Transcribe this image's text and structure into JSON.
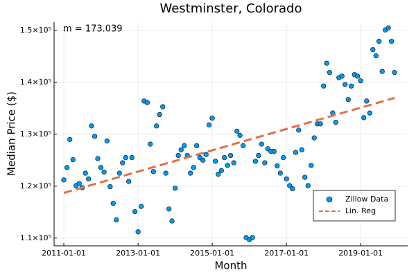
{
  "chart_data": {
    "type": "scatter",
    "title": "Westminster, Colorado",
    "x_label": "Month",
    "y_label": "Median Price ($)",
    "annotation": "m = 173.039",
    "xlim": [
      "2010-09-27",
      "2020-04-08"
    ],
    "ylim": [
      108500,
      151600
    ],
    "xticks": [
      "2011-01-01",
      "2013-01-01",
      "2015-01-01",
      "2017-01-01",
      "2019-01-01"
    ],
    "yticks": [
      {
        "value": 110000,
        "label": "1.1×10⁵"
      },
      {
        "value": 120000,
        "label": "1.2×10⁵"
      },
      {
        "value": 130000,
        "label": "1.3×10⁵"
      },
      {
        "value": 140000,
        "label": "1.4×10⁵"
      },
      {
        "value": 150000,
        "label": "1.5×10⁵"
      }
    ],
    "grid": true,
    "legend": "bottomright",
    "series": [
      {
        "name": "Zillow Data",
        "type": "scatter",
        "color": "#009af9",
        "x": [
          "2011-01-01",
          "2011-02-01",
          "2011-03-01",
          "2011-04-01",
          "2011-05-01",
          "2011-06-01",
          "2011-07-01",
          "2011-08-01",
          "2011-09-01",
          "2011-10-01",
          "2011-11-01",
          "2011-12-01",
          "2012-01-01",
          "2012-02-01",
          "2012-03-01",
          "2012-04-01",
          "2012-05-01",
          "2012-06-01",
          "2012-07-01",
          "2012-08-01",
          "2012-09-01",
          "2012-10-01",
          "2012-11-01",
          "2012-12-01",
          "2013-01-01",
          "2013-02-01",
          "2013-03-01",
          "2013-04-01",
          "2013-05-01",
          "2013-06-01",
          "2013-07-01",
          "2013-08-01",
          "2013-09-01",
          "2013-10-01",
          "2013-11-01",
          "2013-12-01",
          "2014-01-01",
          "2014-02-01",
          "2014-03-01",
          "2014-04-01",
          "2014-05-01",
          "2014-06-01",
          "2014-07-01",
          "2014-08-01",
          "2014-09-01",
          "2014-10-01",
          "2014-11-01",
          "2014-12-01",
          "2015-01-01",
          "2015-02-01",
          "2015-03-01",
          "2015-04-01",
          "2015-05-01",
          "2015-06-01",
          "2015-07-01",
          "2015-08-01",
          "2015-09-01",
          "2015-10-01",
          "2015-11-01",
          "2015-12-01",
          "2016-01-01",
          "2016-02-01",
          "2016-03-01",
          "2016-04-01",
          "2016-05-01",
          "2016-06-01",
          "2016-07-01",
          "2016-08-01",
          "2016-09-01",
          "2016-10-01",
          "2016-11-01",
          "2016-12-01",
          "2017-01-01",
          "2017-02-01",
          "2017-03-01",
          "2017-04-01",
          "2017-05-01",
          "2017-06-01",
          "2017-07-01",
          "2017-08-01",
          "2017-09-01",
          "2017-10-01",
          "2017-11-01",
          "2017-12-01",
          "2018-01-01",
          "2018-02-01",
          "2018-03-01",
          "2018-04-01",
          "2018-05-01",
          "2018-06-01",
          "2018-07-01",
          "2018-08-01",
          "2018-09-01",
          "2018-10-01",
          "2018-11-01",
          "2018-12-01",
          "2019-01-01",
          "2019-02-01",
          "2019-03-01",
          "2019-04-01",
          "2019-05-01",
          "2019-06-01",
          "2019-07-01",
          "2019-08-01",
          "2019-09-01",
          "2019-10-01",
          "2019-11-01",
          "2019-12-01"
        ],
        "values": [
          121200,
          123600,
          129000,
          125100,
          120100,
          120500,
          119700,
          122500,
          121400,
          131600,
          129600,
          125300,
          123600,
          122700,
          128700,
          119900,
          116700,
          113500,
          122500,
          124500,
          125500,
          120900,
          125500,
          115100,
          111200,
          116100,
          136400,
          136100,
          128100,
          122800,
          131600,
          133800,
          135300,
          122500,
          115600,
          113300,
          119600,
          125900,
          127000,
          127800,
          125900,
          122500,
          123600,
          127800,
          125500,
          125000,
          126100,
          131800,
          133100,
          124800,
          122300,
          123000,
          125500,
          124000,
          125900,
          124500,
          130600,
          129800,
          127800,
          110100,
          109700,
          110100,
          124800,
          125900,
          128100,
          124500,
          127200,
          126700,
          126700,
          123900,
          122500,
          125500,
          121400,
          120100,
          119500,
          126500,
          130800,
          127000,
          121700,
          120100,
          124000,
          129300,
          132000,
          132000,
          139300,
          143700,
          141900,
          134100,
          132300,
          140900,
          141200,
          139600,
          136700,
          139300,
          141500,
          141200,
          140300,
          133200,
          136400,
          134100,
          146300,
          145100,
          147900,
          142100,
          150100,
          150500,
          147900,
          141900
        ]
      },
      {
        "name": "Lin. Reg",
        "type": "line",
        "color": "#e26f46",
        "dashed": true,
        "x": [
          "2011-01-01",
          "2019-12-01"
        ],
        "values": [
          118700,
          137000
        ]
      }
    ]
  }
}
